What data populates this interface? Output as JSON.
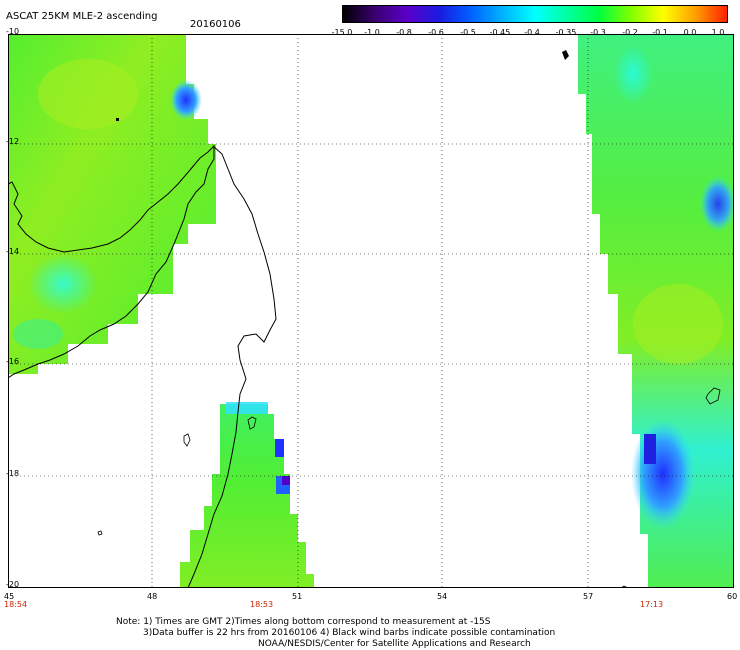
{
  "header": {
    "title": "ASCAT 25KM MLE-2 ascending",
    "date": "20160106"
  },
  "colorbar": {
    "labels": [
      "-15.0",
      "-1.0",
      "-0.8",
      "-0.6",
      "-0.5",
      "-0.45",
      "-0.4",
      "-0.35",
      "-0.3",
      "-0.2",
      "-0.1",
      "0.0",
      "1.0"
    ],
    "colors": [
      "#000000",
      "#3a0070",
      "#5b00c8",
      "#1a1ae0",
      "#0060ff",
      "#00b4ff",
      "#00ffff",
      "#00ffa0",
      "#00ff40",
      "#80ff00",
      "#ffff00",
      "#ffa000",
      "#ff2000"
    ]
  },
  "axes": {
    "y_labels": [
      "-10",
      "-12",
      "-14",
      "-16",
      "-18",
      "-20"
    ],
    "x_labels": [
      "45",
      "48",
      "51",
      "54",
      "57",
      "60"
    ],
    "time_labels": [
      "18:54",
      "18:53",
      "17:13"
    ]
  },
  "notes": {
    "line1": "Note: 1) Times are GMT 2)Times along bottom correspond to measurement at -15S",
    "line2": "3)Data buffer is 22 hrs from 20160106 4) Black wind barbs indicate possible contamination",
    "line3": "NOAA/NESDIS/Center for Satellite Applications and Research"
  },
  "palette": {
    "swath_green": "#44ee30",
    "swath_yellowgreen": "#99ee20",
    "swath_cyan": "#20ffd0",
    "swath_blue": "#2040ff",
    "coast": "#000000",
    "grid": "#000000",
    "time_color": "#cc2200"
  }
}
